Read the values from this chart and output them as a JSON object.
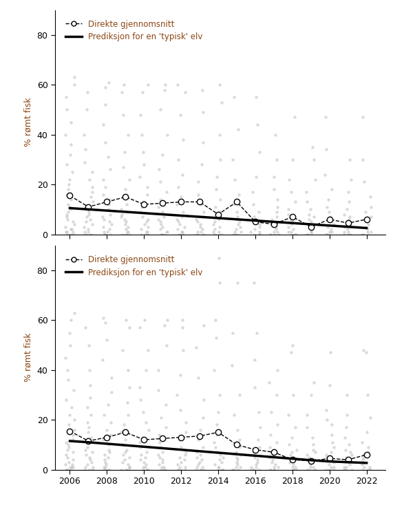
{
  "years": [
    2006,
    2007,
    2008,
    2009,
    2010,
    2011,
    2012,
    2013,
    2014,
    2015,
    2016,
    2017,
    2018,
    2019,
    2020,
    2021,
    2022
  ],
  "panel1_means": [
    15.5,
    11.0,
    13.0,
    15.0,
    12.0,
    12.5,
    13.0,
    13.0,
    8.0,
    13.0,
    5.0,
    4.0,
    7.0,
    3.0,
    6.0,
    4.5,
    6.0
  ],
  "panel2_means": [
    15.5,
    11.5,
    13.0,
    15.0,
    12.0,
    12.5,
    13.0,
    13.5,
    15.0,
    10.0,
    8.0,
    7.0,
    4.0,
    3.5,
    4.5,
    4.0,
    6.0
  ],
  "panel1_pred": [
    10.5,
    10.0,
    9.5,
    9.0,
    8.5,
    8.0,
    7.5,
    7.0,
    6.5,
    6.0,
    5.5,
    5.0,
    4.5,
    4.0,
    3.5,
    3.0,
    2.5
  ],
  "panel2_pred": [
    11.5,
    11.0,
    10.4,
    9.8,
    9.2,
    8.6,
    8.0,
    7.4,
    6.8,
    6.2,
    5.6,
    5.0,
    4.4,
    3.8,
    3.3,
    3.0,
    2.7
  ],
  "panel1_scatter_y": {
    "2006": [
      0,
      0,
      0,
      0,
      0,
      1,
      1,
      1,
      2,
      2,
      3,
      4,
      5,
      6,
      7,
      8,
      9,
      10,
      11,
      12,
      14,
      16,
      18,
      20,
      22,
      25,
      28,
      32,
      36,
      40,
      45,
      50,
      55,
      60,
      63
    ],
    "2007": [
      0,
      0,
      0,
      0,
      1,
      1,
      2,
      3,
      4,
      5,
      6,
      7,
      8,
      9,
      11,
      13,
      15,
      17,
      19,
      22,
      25,
      29,
      34,
      40,
      50,
      57
    ],
    "2008": [
      0,
      0,
      0,
      0,
      1,
      1,
      2,
      3,
      4,
      5,
      6,
      7,
      8,
      10,
      12,
      14,
      16,
      19,
      22,
      26,
      31,
      37,
      44,
      52,
      59,
      61
    ],
    "2009": [
      0,
      0,
      0,
      0,
      1,
      1,
      2,
      3,
      4,
      5,
      6,
      7,
      8,
      10,
      12,
      15,
      18,
      22,
      27,
      33,
      40,
      48,
      57,
      60
    ],
    "2010": [
      0,
      0,
      0,
      0,
      1,
      1,
      2,
      3,
      4,
      5,
      6,
      7,
      9,
      11,
      13,
      16,
      19,
      23,
      28,
      33,
      40,
      48,
      57,
      60
    ],
    "2011": [
      0,
      0,
      0,
      0,
      1,
      1,
      2,
      3,
      4,
      5,
      6,
      7,
      9,
      11,
      14,
      17,
      21,
      26,
      32,
      40,
      50,
      58,
      60
    ],
    "2012": [
      0,
      0,
      0,
      0,
      1,
      1,
      2,
      3,
      4,
      5,
      6,
      7,
      9,
      12,
      15,
      19,
      24,
      30,
      38,
      48,
      57,
      60
    ],
    "2013": [
      0,
      0,
      0,
      0,
      1,
      1,
      2,
      3,
      4,
      5,
      6,
      7,
      9,
      12,
      16,
      21,
      28,
      37,
      49,
      58
    ],
    "2014": [
      0,
      0,
      0,
      0,
      1,
      1,
      2,
      3,
      4,
      5,
      6,
      7,
      9,
      11,
      14,
      18,
      23,
      30,
      40,
      53,
      60
    ],
    "2015": [
      0,
      0,
      0,
      0,
      1,
      1,
      2,
      3,
      4,
      5,
      6,
      7,
      9,
      12,
      16,
      22,
      30,
      42,
      55
    ],
    "2016": [
      0,
      0,
      0,
      0,
      1,
      1,
      2,
      3,
      4,
      5,
      6,
      7,
      9,
      12,
      17,
      23,
      33,
      44,
      55
    ],
    "2017": [
      0,
      0,
      0,
      0,
      1,
      1,
      2,
      3,
      4,
      5,
      6,
      7,
      9,
      11,
      14,
      18,
      23,
      30,
      40
    ],
    "2018": [
      0,
      0,
      0,
      0,
      1,
      1,
      2,
      3,
      4,
      5,
      6,
      7,
      8,
      10,
      13,
      17,
      22,
      30,
      47
    ],
    "2019": [
      0,
      0,
      0,
      0,
      1,
      1,
      2,
      3,
      4,
      5,
      6,
      7,
      8,
      10,
      13,
      17,
      22,
      30,
      35
    ],
    "2020": [
      0,
      0,
      0,
      0,
      1,
      1,
      2,
      3,
      4,
      5,
      6,
      7,
      9,
      11,
      14,
      18,
      24,
      34,
      47
    ],
    "2021": [
      0,
      0,
      0,
      0,
      1,
      1,
      2,
      3,
      4,
      5,
      6,
      7,
      8,
      10,
      13,
      17,
      22,
      30
    ],
    "2022": [
      0,
      0,
      0,
      0,
      1,
      1,
      2,
      3,
      4,
      5,
      6,
      7,
      9,
      11,
      15,
      21,
      30,
      47
    ]
  },
  "panel2_scatter_y": {
    "2006": [
      0,
      0,
      0,
      0,
      0,
      1,
      1,
      1,
      2,
      2,
      3,
      4,
      5,
      6,
      7,
      8,
      9,
      10,
      11,
      12,
      14,
      16,
      18,
      20,
      22,
      25,
      28,
      32,
      36,
      40,
      45,
      50,
      55,
      60,
      63
    ],
    "2007": [
      0,
      0,
      0,
      0,
      1,
      1,
      2,
      3,
      4,
      5,
      6,
      7,
      8,
      9,
      11,
      13,
      15,
      17,
      19,
      22,
      25,
      29,
      34,
      40,
      50,
      57
    ],
    "2008": [
      0,
      0,
      0,
      0,
      1,
      1,
      2,
      3,
      4,
      5,
      6,
      7,
      8,
      10,
      12,
      14,
      16,
      19,
      22,
      26,
      31,
      37,
      44,
      52,
      59,
      61
    ],
    "2009": [
      0,
      0,
      0,
      0,
      1,
      1,
      2,
      3,
      4,
      5,
      6,
      7,
      8,
      10,
      12,
      15,
      18,
      22,
      27,
      33,
      40,
      48,
      57,
      60
    ],
    "2010": [
      0,
      0,
      0,
      0,
      1,
      1,
      2,
      3,
      4,
      5,
      6,
      7,
      9,
      11,
      13,
      16,
      19,
      23,
      28,
      33,
      40,
      48,
      57,
      60
    ],
    "2011": [
      0,
      0,
      0,
      0,
      1,
      1,
      2,
      3,
      4,
      5,
      6,
      7,
      9,
      11,
      14,
      17,
      21,
      26,
      32,
      40,
      50,
      58,
      60
    ],
    "2012": [
      0,
      0,
      0,
      0,
      1,
      1,
      2,
      3,
      4,
      5,
      6,
      7,
      9,
      12,
      15,
      19,
      24,
      30,
      38,
      48,
      57,
      60
    ],
    "2013": [
      0,
      0,
      0,
      0,
      1,
      1,
      2,
      3,
      4,
      5,
      6,
      7,
      9,
      12,
      16,
      21,
      28,
      37,
      49,
      58
    ],
    "2014": [
      0,
      0,
      0,
      0,
      1,
      1,
      2,
      3,
      4,
      5,
      6,
      7,
      9,
      11,
      14,
      18,
      23,
      30,
      40,
      53,
      60,
      75,
      85
    ],
    "2015": [
      0,
      0,
      0,
      0,
      1,
      1,
      2,
      3,
      4,
      5,
      6,
      7,
      9,
      12,
      16,
      22,
      30,
      42,
      55,
      75
    ],
    "2016": [
      0,
      0,
      0,
      0,
      1,
      1,
      2,
      3,
      4,
      5,
      6,
      7,
      9,
      12,
      17,
      23,
      33,
      44,
      55,
      75
    ],
    "2017": [
      0,
      0,
      0,
      0,
      1,
      1,
      2,
      3,
      4,
      5,
      6,
      7,
      9,
      11,
      14,
      18,
      23,
      30,
      40,
      35
    ],
    "2018": [
      0,
      0,
      0,
      0,
      1,
      1,
      2,
      3,
      4,
      5,
      6,
      7,
      8,
      10,
      13,
      17,
      22,
      30,
      47,
      50
    ],
    "2019": [
      0,
      0,
      0,
      0,
      1,
      1,
      2,
      3,
      4,
      5,
      6,
      7,
      8,
      10,
      13,
      17,
      22,
      30,
      35
    ],
    "2020": [
      0,
      0,
      0,
      0,
      1,
      1,
      2,
      3,
      4,
      5,
      6,
      7,
      9,
      11,
      14,
      18,
      24,
      34,
      47,
      20
    ],
    "2021": [
      0,
      0,
      0,
      0,
      1,
      1,
      2,
      3,
      4,
      5,
      6,
      7,
      8,
      10,
      13,
      17,
      22,
      30
    ],
    "2022": [
      0,
      0,
      0,
      0,
      1,
      1,
      2,
      3,
      4,
      5,
      6,
      7,
      9,
      11,
      15,
      21,
      30,
      47,
      48
    ]
  },
  "ylabel": "% rømt fisk",
  "legend_line1": "Direkte gjennomsnitt",
  "legend_line2": "Prediksjon for en 'typisk' elv",
  "ylim": [
    0,
    90
  ],
  "yticks": [
    0,
    20,
    40,
    60,
    80
  ],
  "xticks": [
    2006,
    2008,
    2010,
    2012,
    2014,
    2016,
    2018,
    2020,
    2022
  ],
  "scatter_color": "#c0c0c0",
  "scatter_alpha": 0.6,
  "scatter_size": 10,
  "mean_line_color": "#000000",
  "pred_line_color": "#000000",
  "label_color": "#8B4513",
  "tick_label_color": "#000000",
  "background_color": "#ffffff"
}
